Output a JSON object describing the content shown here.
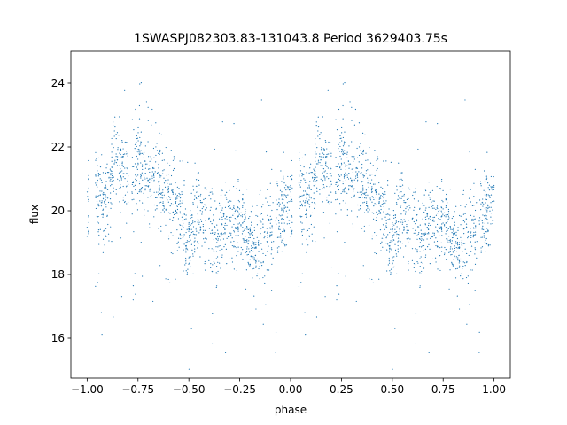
{
  "chart_data": {
    "type": "scatter",
    "title": "1SWASPJ082303.83-131043.8 Period 3629403.75s",
    "xlabel": "phase",
    "ylabel": "flux",
    "xlim": [
      -1.08,
      1.08
    ],
    "ylim": [
      14.75,
      25.0
    ],
    "xticks": [
      -1.0,
      -0.75,
      -0.5,
      -0.25,
      0.0,
      0.25,
      0.5,
      0.75,
      1.0
    ],
    "xtick_labels": [
      "−1.00",
      "−0.75",
      "−0.50",
      "−0.25",
      "0.00",
      "0.25",
      "0.50",
      "0.75",
      "1.00"
    ],
    "yticks": [
      16,
      18,
      20,
      22,
      24
    ],
    "ytick_labels": [
      "16",
      "18",
      "20",
      "22",
      "24"
    ],
    "grid": false,
    "legend": "none",
    "point_color": "#1f77b4",
    "point_size": 0.8,
    "phase_period": 1.0,
    "series": [
      {
        "profile": [
          [
            0.0,
            20.2
          ],
          [
            0.03,
            20.6
          ],
          [
            0.06,
            20.4
          ],
          [
            0.09,
            20.3
          ],
          [
            0.11,
            20.8
          ],
          [
            0.13,
            21.8
          ],
          [
            0.16,
            21.4
          ],
          [
            0.19,
            20.9
          ],
          [
            0.22,
            21.3
          ],
          [
            0.25,
            21.6
          ],
          [
            0.28,
            21.2
          ],
          [
            0.31,
            21.0
          ],
          [
            0.34,
            20.9
          ],
          [
            0.37,
            20.7
          ],
          [
            0.4,
            20.3
          ],
          [
            0.43,
            20.4
          ],
          [
            0.46,
            19.7
          ],
          [
            0.49,
            18.9
          ],
          [
            0.52,
            19.4
          ],
          [
            0.55,
            20.0
          ],
          [
            0.58,
            19.5
          ],
          [
            0.61,
            19.4
          ],
          [
            0.64,
            18.9
          ],
          [
            0.67,
            19.7
          ],
          [
            0.7,
            19.6
          ],
          [
            0.73,
            19.4
          ],
          [
            0.76,
            19.8
          ],
          [
            0.79,
            18.9
          ],
          [
            0.82,
            18.7
          ],
          [
            0.85,
            19.2
          ],
          [
            0.88,
            19.0
          ],
          [
            0.91,
            19.6
          ],
          [
            0.94,
            19.7
          ],
          [
            0.97,
            20.0
          ],
          [
            1.0,
            20.2
          ]
        ],
        "scatter_std": 0.65,
        "points_per_cycle": 1500,
        "gaps": [
          [
            0.01,
            0.04
          ],
          [
            0.2,
            0.22
          ],
          [
            0.585,
            0.6
          ],
          [
            0.915,
            0.93
          ]
        ]
      }
    ]
  }
}
